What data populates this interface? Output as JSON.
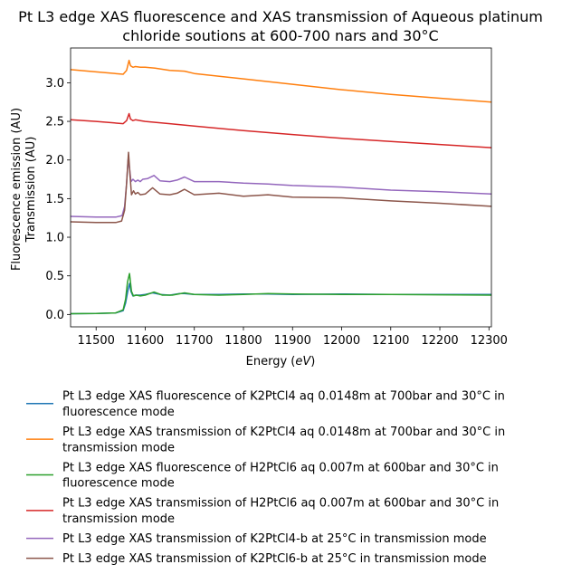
{
  "chart_data": {
    "type": "line",
    "title_lines": [
      "Pt L3 edge XAS fluorescence and XAS transmission of Aqueous platinum",
      "chloride soutions at 600-700 nars and 30°C"
    ],
    "xlabel_prefix": "Energy (",
    "xlabel_unit": "eV",
    "xlabel_suffix": ")",
    "ylabel_lines": [
      "Fluorescence emission (AU)",
      "Transmission (AU)"
    ],
    "xlim": [
      11448,
      12305
    ],
    "ylim": [
      -0.16,
      3.45
    ],
    "xticks": [
      11500,
      11600,
      11700,
      11800,
      11900,
      12000,
      12100,
      12200,
      12300
    ],
    "yticks": [
      0.0,
      0.5,
      1.0,
      1.5,
      2.0,
      2.5,
      3.0
    ],
    "xtick_labels": [
      "11500",
      "11600",
      "11700",
      "11800",
      "11900",
      "12000",
      "12100",
      "12200",
      "12300"
    ],
    "ytick_labels": [
      "0.0",
      "0.5",
      "1.0",
      "1.5",
      "2.0",
      "2.5",
      "3.0"
    ],
    "grid": false,
    "legend_position": "below",
    "series": [
      {
        "name": "Pt L3 edge XAS fluorescence of K2PtCl4 aq 0.0148m at 700bar and 30°C in fluorescence mode",
        "legend_lines": [
          "Pt L3 edge XAS fluorescence of K2PtCl4 aq 0.0148m at 700bar and 30°C in",
          "fluorescence mode"
        ],
        "color": "#1f77b4",
        "x": [
          11448,
          11500,
          11540,
          11555,
          11560,
          11565,
          11568,
          11571,
          11575,
          11580,
          11590,
          11600,
          11615,
          11630,
          11650,
          11670,
          11680,
          11700,
          11750,
          11800,
          11850,
          11900,
          12000,
          12100,
          12200,
          12305
        ],
        "y": [
          0.01,
          0.012,
          0.02,
          0.05,
          0.15,
          0.32,
          0.4,
          0.3,
          0.24,
          0.25,
          0.25,
          0.26,
          0.28,
          0.26,
          0.25,
          0.27,
          0.27,
          0.26,
          0.26,
          0.265,
          0.265,
          0.26,
          0.265,
          0.26,
          0.26,
          0.26
        ]
      },
      {
        "name": "Pt L3 edge XAS transmission of K2PtCl4 aq 0.0148m at 700bar and 30°C in transmission mode",
        "legend_lines": [
          "Pt L3 edge XAS transmission of K2PtCl4 aq 0.0148m at 700bar and 30°C in",
          "transmission mode"
        ],
        "color": "#ff7f0e",
        "x": [
          11448,
          11500,
          11555,
          11562,
          11567,
          11570,
          11575,
          11580,
          11590,
          11600,
          11620,
          11650,
          11680,
          11700,
          11800,
          11900,
          12000,
          12100,
          12200,
          12305
        ],
        "y": [
          3.17,
          3.14,
          3.11,
          3.16,
          3.29,
          3.22,
          3.2,
          3.21,
          3.2,
          3.2,
          3.19,
          3.16,
          3.15,
          3.12,
          3.05,
          2.98,
          2.91,
          2.85,
          2.8,
          2.75
        ]
      },
      {
        "name": "Pt L3 edge XAS fluorescence of H2PtCl6 aq 0.007m at 600bar and 30°C in fluorescence mode",
        "legend_lines": [
          "Pt L3 edge XAS fluorescence of H2PtCl6 aq 0.007m at 600bar and 30°C in",
          "fluorescence mode"
        ],
        "color": "#2ca02c",
        "x": [
          11448,
          11500,
          11540,
          11555,
          11560,
          11564,
          11568,
          11572,
          11576,
          11582,
          11590,
          11600,
          11618,
          11635,
          11655,
          11680,
          11700,
          11750,
          11800,
          11850,
          11900,
          12000,
          12100,
          12200,
          12305
        ],
        "y": [
          0.01,
          0.012,
          0.02,
          0.06,
          0.2,
          0.42,
          0.53,
          0.3,
          0.24,
          0.25,
          0.24,
          0.25,
          0.29,
          0.25,
          0.25,
          0.28,
          0.26,
          0.25,
          0.26,
          0.27,
          0.265,
          0.26,
          0.26,
          0.255,
          0.25
        ]
      },
      {
        "name": "Pt L3 edge XAS transmission of H2PtCl6 aq 0.007m at 600bar and 30°C in transmission mode",
        "legend_lines": [
          "Pt L3 edge XAS transmission of H2PtCl6 aq 0.007m at 600bar and 30°C in",
          "transmission mode"
        ],
        "color": "#d62728",
        "x": [
          11448,
          11500,
          11555,
          11562,
          11567,
          11570,
          11575,
          11580,
          11590,
          11600,
          11650,
          11700,
          11800,
          11900,
          12000,
          12100,
          12200,
          12305
        ],
        "y": [
          2.52,
          2.5,
          2.47,
          2.51,
          2.6,
          2.53,
          2.51,
          2.52,
          2.51,
          2.5,
          2.47,
          2.44,
          2.38,
          2.33,
          2.28,
          2.24,
          2.2,
          2.16
        ]
      },
      {
        "name": "Pt L3 edge XAS transmission of K2PtCl4-b at 25°C in transmission mode",
        "legend_lines": [
          "Pt L3 edge XAS transmission of K2PtCl4-b at 25°C in transmission mode"
        ],
        "color": "#9467bd",
        "x": [
          11448,
          11500,
          11540,
          11553,
          11558,
          11562,
          11565,
          11568,
          11571,
          11575,
          11580,
          11585,
          11590,
          11595,
          11605,
          11618,
          11630,
          11650,
          11665,
          11680,
          11700,
          11750,
          11800,
          11850,
          11900,
          12000,
          12100,
          12200,
          12305
        ],
        "y": [
          1.27,
          1.26,
          1.26,
          1.28,
          1.4,
          1.7,
          2.0,
          1.9,
          1.72,
          1.75,
          1.72,
          1.74,
          1.72,
          1.75,
          1.76,
          1.8,
          1.73,
          1.72,
          1.74,
          1.78,
          1.72,
          1.72,
          1.7,
          1.69,
          1.67,
          1.65,
          1.61,
          1.59,
          1.56
        ]
      },
      {
        "name": "Pt L3 edge XAS transmission of K2PtCl6-b at 25°C in transmission mode",
        "legend_lines": [
          "Pt L3 edge XAS transmission of K2PtCl6-b at 25°C in transmission mode"
        ],
        "color": "#8c564b",
        "x": [
          11448,
          11500,
          11540,
          11552,
          11558,
          11562,
          11566,
          11569,
          11572,
          11576,
          11580,
          11585,
          11590,
          11600,
          11615,
          11630,
          11650,
          11665,
          11680,
          11700,
          11750,
          11800,
          11850,
          11900,
          12000,
          12100,
          12200,
          12305
        ],
        "y": [
          1.2,
          1.19,
          1.19,
          1.21,
          1.35,
          1.7,
          2.1,
          1.8,
          1.55,
          1.6,
          1.56,
          1.58,
          1.55,
          1.56,
          1.64,
          1.56,
          1.55,
          1.57,
          1.62,
          1.55,
          1.57,
          1.53,
          1.55,
          1.52,
          1.51,
          1.47,
          1.44,
          1.4
        ]
      }
    ]
  }
}
